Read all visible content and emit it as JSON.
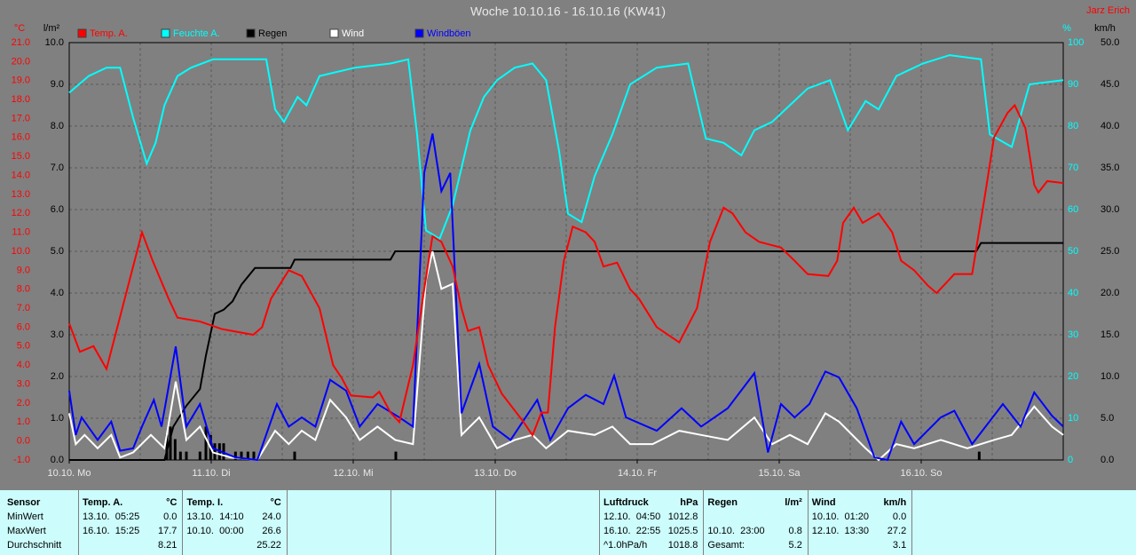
{
  "chart_data": {
    "type": "line",
    "title": "Woche 10.10.16 - 16.10.16 (KW41)",
    "author": "Jarz Erich",
    "xlim": [
      0,
      168
    ],
    "xticks": [
      {
        "value": 0,
        "label": "10.10. Mo"
      },
      {
        "value": 24,
        "label": "11.10. Di"
      },
      {
        "value": 48,
        "label": "12.10. Mi"
      },
      {
        "value": 72,
        "label": "13.10. Do"
      },
      {
        "value": 96,
        "label": "14.10. Fr"
      },
      {
        "value": 120,
        "label": "15.10. Sa"
      },
      {
        "value": 144,
        "label": "16.10. So"
      }
    ],
    "xgrid": [
      12,
      24,
      36,
      48,
      60,
      72,
      84,
      96,
      108,
      120,
      132,
      144,
      156
    ],
    "grid": true,
    "axes": {
      "temp": {
        "unit": "°C",
        "color": "#ff0000",
        "lim": [
          -1,
          21
        ],
        "ticks": [
          {
            "value": -1,
            "label": "-1.0"
          },
          {
            "value": 0,
            "label": "0.0"
          },
          {
            "value": 1,
            "label": "1.0"
          },
          {
            "value": 2,
            "label": "2.0"
          },
          {
            "value": 3,
            "label": "3.0"
          },
          {
            "value": 4,
            "label": "4.0"
          },
          {
            "value": 5,
            "label": "5.0"
          },
          {
            "value": 6,
            "label": "6.0"
          },
          {
            "value": 7,
            "label": "7.0"
          },
          {
            "value": 8,
            "label": "8.0"
          },
          {
            "value": 9,
            "label": "9.0"
          },
          {
            "value": 10,
            "label": "10.0"
          },
          {
            "value": 11,
            "label": "11.0"
          },
          {
            "value": 12,
            "label": "12.0"
          },
          {
            "value": 13,
            "label": "13.0"
          },
          {
            "value": 14,
            "label": "14.0"
          },
          {
            "value": 15,
            "label": "15.0"
          },
          {
            "value": 16,
            "label": "16.0"
          },
          {
            "value": 17,
            "label": "17.0"
          },
          {
            "value": 18,
            "label": "18.0"
          },
          {
            "value": 19,
            "label": "19.0"
          },
          {
            "value": 20,
            "label": "20.0"
          },
          {
            "value": 21,
            "label": "21.0"
          }
        ]
      },
      "rain": {
        "unit": "l/m²",
        "color": "#000000",
        "lim": [
          0,
          10
        ],
        "ticks": [
          {
            "value": 0,
            "label": "0.0"
          },
          {
            "value": 1,
            "label": "1.0"
          },
          {
            "value": 2,
            "label": "2.0"
          },
          {
            "value": 3,
            "label": "3.0"
          },
          {
            "value": 4,
            "label": "4.0"
          },
          {
            "value": 5,
            "label": "5.0"
          },
          {
            "value": 6,
            "label": "6.0"
          },
          {
            "value": 7,
            "label": "7.0"
          },
          {
            "value": 8,
            "label": "8.0"
          },
          {
            "value": 9,
            "label": "9.0"
          },
          {
            "value": 10,
            "label": "10.0"
          }
        ]
      },
      "humidity": {
        "unit": "%",
        "color": "#00ffff",
        "lim": [
          0,
          100
        ],
        "ticks": [
          0,
          10,
          20,
          30,
          40,
          50,
          60,
          70,
          80,
          90,
          100
        ]
      },
      "wind": {
        "unit": "km/h",
        "color": "#000000",
        "lim": [
          0,
          50
        ],
        "ticks": [
          {
            "value": 0,
            "label": "0.0"
          },
          {
            "value": 5,
            "label": "5.0"
          },
          {
            "value": 10,
            "label": "10.0"
          },
          {
            "value": 15,
            "label": "15.0"
          },
          {
            "value": 20,
            "label": "20.0"
          },
          {
            "value": 25,
            "label": "25.0"
          },
          {
            "value": 30,
            "label": "30.0"
          },
          {
            "value": 35,
            "label": "35.0"
          },
          {
            "value": 40,
            "label": "40.0"
          },
          {
            "value": 45,
            "label": "45.0"
          },
          {
            "value": 50,
            "label": "50.0"
          }
        ]
      }
    },
    "series": [
      {
        "name": "Temp. A.",
        "color": "#ff0000",
        "axis": "temp",
        "x": [
          0,
          1.8,
          4.1,
          6.3,
          12.3,
          14.1,
          16.8,
          18.3,
          22.1,
          25.8,
          31.1,
          32.6,
          34.1,
          37.1,
          39.3,
          42.3,
          44.6,
          46.1,
          47.6,
          51.3,
          52.4,
          54.3,
          55.8,
          58.1,
          60.0,
          61.4,
          62.9,
          64.8,
          66.3,
          67.4,
          69.3,
          70.8,
          73.1,
          76.8,
          78.3,
          79.8,
          80.9,
          82.1,
          83.6,
          85.1,
          87.3,
          88.8,
          90.3,
          92.6,
          94.8,
          96.3,
          99.3,
          103.1,
          106.1,
          108.3,
          110.6,
          112.1,
          114.3,
          116.6,
          120.3,
          122.6,
          124.8,
          128.3,
          129.8,
          130.8,
          132.6,
          134.1,
          136.8,
          139.1,
          140.6,
          142.8,
          145.1,
          146.6,
          149.6,
          152.6,
          154.8,
          156.3,
          158.6,
          159.8,
          161.6,
          163.1,
          163.8,
          165.3,
          168
        ],
        "values": [
          6.2,
          4.7,
          5.0,
          3.8,
          11.0,
          9.5,
          7.5,
          6.5,
          6.3,
          5.9,
          5.6,
          6.0,
          7.5,
          9.0,
          8.7,
          7.0,
          4.0,
          3.3,
          2.4,
          2.3,
          2.6,
          1.5,
          1.0,
          4.0,
          8.0,
          10.8,
          10.5,
          9.2,
          7.0,
          5.8,
          6.0,
          4.0,
          2.5,
          1.0,
          0.3,
          1.5,
          1.5,
          6.0,
          9.5,
          11.3,
          11.0,
          10.5,
          9.2,
          9.4,
          8.0,
          7.5,
          6.0,
          5.2,
          7.0,
          10.5,
          12.3,
          12.0,
          11.0,
          10.5,
          10.2,
          9.5,
          8.8,
          8.7,
          9.5,
          11.5,
          12.3,
          11.5,
          12.0,
          11.0,
          9.5,
          9.0,
          8.2,
          7.8,
          8.8,
          8.8,
          13.0,
          16.0,
          17.3,
          17.7,
          16.5,
          13.5,
          13.1,
          13.7,
          13.6
        ]
      },
      {
        "name": "Feuchte A.",
        "color": "#00ffff",
        "axis": "humidity",
        "x": [
          0,
          3.3,
          6.3,
          8.6,
          10.8,
          13.1,
          14.6,
          16.1,
          18.3,
          20.6,
          24.3,
          27.3,
          33.3,
          34.8,
          36.3,
          38.6,
          40.1,
          42.3,
          45.3,
          48.3,
          54.3,
          57.3,
          58.8,
          60.3,
          62.6,
          64.8,
          67.8,
          70.1,
          72.3,
          75.3,
          78.3,
          80.6,
          82.8,
          84.3,
          86.6,
          88.8,
          91.8,
          94.8,
          99.3,
          104.6,
          107.6,
          110.6,
          113.6,
          115.8,
          118.8,
          121.8,
          124.8,
          128.6,
          131.6,
          134.6,
          136.8,
          139.8,
          144.3,
          148.8,
          154.1,
          155.6,
          159.3,
          162.3,
          168
        ],
        "values": [
          88,
          92,
          94,
          94,
          82,
          71,
          76,
          85,
          92,
          94,
          96,
          96,
          96,
          84,
          81,
          87,
          85,
          92,
          93,
          94,
          95,
          96,
          78,
          55,
          53,
          61,
          79,
          87,
          91,
          94,
          95,
          91,
          74,
          59,
          57,
          68,
          78,
          90,
          94,
          95,
          77,
          76,
          73,
          79,
          81,
          85,
          89,
          91,
          79,
          86,
          84,
          92,
          95,
          97,
          96,
          78,
          75,
          90,
          91
        ]
      },
      {
        "name": "Regen",
        "color": "#000000",
        "axis": "rain",
        "x": [
          0,
          16.1,
          17.6,
          19.8,
          22.1,
          23.1,
          24.6,
          26.1,
          27.6,
          29.1,
          31.4,
          37.4,
          38.1,
          54.3,
          55.1,
          153.3,
          154.1,
          168
        ],
        "values": [
          0,
          0,
          0.8,
          1.3,
          1.7,
          2.5,
          3.5,
          3.6,
          3.8,
          4.2,
          4.6,
          4.6,
          4.8,
          4.8,
          5.0,
          5.0,
          5.2,
          5.2
        ],
        "bar_x": [
          16.5,
          17.1,
          17.9,
          18.8,
          19.8,
          22.1,
          23.1,
          23.9,
          24.6,
          25.4,
          26.1,
          28.1,
          29.1,
          30.2,
          31.2,
          38.1,
          55.2,
          153.8
        ],
        "bar_values": [
          0.6,
          0.8,
          0.5,
          0.2,
          0.2,
          0.2,
          0.8,
          0.6,
          0.4,
          0.4,
          0.4,
          0.2,
          0.2,
          0.2,
          0.2,
          0.2,
          0.2,
          0.2
        ]
      },
      {
        "name": "Wind",
        "color": "#ffffff",
        "axis": "wind",
        "x": [
          0,
          1.1,
          2.6,
          4.8,
          7.1,
          8.6,
          10.8,
          13.8,
          16.1,
          18.0,
          19.8,
          22.1,
          24.3,
          27.3,
          31.8,
          34.8,
          37.1,
          39.3,
          41.6,
          44.1,
          46.8,
          49.1,
          52.1,
          55.1,
          58.1,
          60.3,
          61.4,
          62.9,
          64.8,
          66.3,
          69.3,
          72.3,
          75.3,
          78.3,
          80.6,
          84.3,
          88.8,
          91.8,
          94.8,
          98.6,
          103.1,
          106.8,
          111.3,
          115.8,
          118.8,
          121.8,
          124.8,
          127.8,
          130.1,
          134.6,
          136.8,
          139.8,
          142.8,
          147.3,
          151.8,
          156.3,
          159.3,
          163.1,
          166.1,
          168
        ],
        "values": [
          5.6,
          1.9,
          3.0,
          1.4,
          3.0,
          0.3,
          0.9,
          3.0,
          1.4,
          9.4,
          2.4,
          4.0,
          0.9,
          0.3,
          0,
          3.5,
          1.9,
          3.5,
          2.4,
          7.2,
          5.1,
          2.4,
          4.0,
          2.4,
          1.9,
          21.6,
          25.0,
          20.5,
          21.1,
          3.0,
          5.1,
          1.4,
          2.4,
          3.0,
          1.4,
          3.5,
          3.0,
          4.0,
          1.9,
          1.9,
          3.5,
          3.0,
          2.4,
          5.1,
          1.9,
          3.0,
          1.9,
          5.6,
          4.6,
          1.4,
          0,
          1.9,
          1.4,
          2.4,
          1.4,
          2.4,
          3.0,
          6.4,
          4.0,
          3.0
        ]
      },
      {
        "name": "Windböen",
        "color": "#0000ff",
        "axis": "wind",
        "x": [
          0,
          1.1,
          2.1,
          4.8,
          7.1,
          8.6,
          10.8,
          12.3,
          14.3,
          15.6,
          18.0,
          19.8,
          22.1,
          24.3,
          28.1,
          31.8,
          35.1,
          37.1,
          39.3,
          41.6,
          44.1,
          46.8,
          49.1,
          52.1,
          55.8,
          58.1,
          60.0,
          61.4,
          62.9,
          64.4,
          66.3,
          69.3,
          71.6,
          74.6,
          79.1,
          81.3,
          84.3,
          87.3,
          90.3,
          92.1,
          94.1,
          99.3,
          103.5,
          106.8,
          111.3,
          115.8,
          118.1,
          120.3,
          122.6,
          125.1,
          127.8,
          130.1,
          133.1,
          136.1,
          138.3,
          140.6,
          142.8,
          147.3,
          149.6,
          152.6,
          157.8,
          160.8,
          163.1,
          166.1,
          168
        ],
        "values": [
          8.3,
          3.0,
          5.1,
          2.4,
          4.6,
          1.1,
          1.4,
          4.0,
          7.2,
          4.0,
          13.6,
          4.0,
          6.7,
          1.4,
          0.3,
          0,
          6.7,
          4.0,
          5.1,
          4.0,
          9.6,
          8.3,
          4.0,
          6.7,
          5.1,
          4.0,
          34.4,
          39.1,
          32.2,
          34.4,
          5.6,
          11.5,
          4.0,
          2.4,
          7.2,
          2.4,
          6.2,
          7.8,
          6.7,
          10.1,
          5.1,
          3.5,
          6.2,
          4.0,
          6.2,
          10.4,
          0.9,
          6.7,
          5.1,
          6.7,
          10.6,
          9.9,
          6.2,
          0.3,
          0,
          4.6,
          1.9,
          5.1,
          5.9,
          1.9,
          6.7,
          4.0,
          8.1,
          5.3,
          4.0
        ]
      }
    ]
  },
  "table": {
    "row_labels": [
      "Sensor",
      "MinWert",
      "MaxWert",
      "Durchschnitt"
    ],
    "columns": [
      {
        "header": "Temp. A.",
        "unit": "°C",
        "cells": [
          [
            "13.10.  05:25",
            "0.0"
          ],
          [
            "16.10.  15:25",
            "17.7"
          ],
          [
            null,
            "8.21"
          ]
        ]
      },
      {
        "header": "Temp. I.",
        "unit": "°C",
        "cells": [
          [
            "13.10.  14:10",
            "24.0"
          ],
          [
            "10.10.  00:00",
            "26.6"
          ],
          [
            null,
            "25.22"
          ]
        ]
      },
      null,
      null,
      null,
      {
        "header": "Luftdruck",
        "unit": "hPa",
        "cells": [
          [
            "12.10.  04:50",
            "1012.8"
          ],
          [
            "16.10.  22:55",
            "1025.5"
          ],
          [
            "^1.0hPa/h",
            "1018.8"
          ]
        ]
      },
      {
        "header": "Regen",
        "unit": "l/m²",
        "cells": [
          [
            null,
            null
          ],
          [
            "10.10.  23:00",
            "0.8"
          ],
          [
            "Gesamt:",
            "5.2"
          ]
        ]
      },
      {
        "header": "Wind",
        "unit": "km/h",
        "cells": [
          [
            "10.10.  01:20",
            "0.0"
          ],
          [
            "12.10.  13:30",
            "27.2"
          ],
          [
            null,
            "3.1"
          ]
        ]
      }
    ]
  }
}
